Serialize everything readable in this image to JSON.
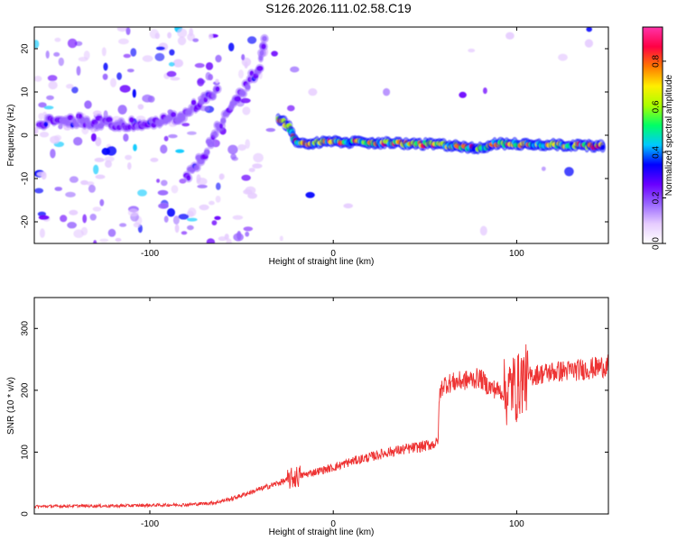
{
  "title": "S126.2026.111.02.58.C19",
  "colors": {
    "snr_line": "#ee3333",
    "axis": "#000000",
    "colormap": [
      "#ffffff",
      "#e6ccff",
      "#9966ff",
      "#6a00ff",
      "#0000ff",
      "#00c8ff",
      "#00ff66",
      "#aaff00",
      "#ffee00",
      "#ff7700",
      "#ff0044",
      "#ff33aa"
    ]
  },
  "chart_data": [
    {
      "type": "heatmap",
      "title": "",
      "xlabel": "Height of straight line (km)",
      "ylabel": "Frequency (Hz)",
      "xlim": [
        -163,
        150
      ],
      "ylim": [
        -25,
        25
      ],
      "xticks": [
        {
          "value": -100,
          "label": "-100"
        },
        {
          "value": 0,
          "label": "0"
        },
        {
          "value": 100,
          "label": "100"
        }
      ],
      "yticks": [
        {
          "value": -20,
          "label": "-20"
        },
        {
          "value": -10,
          "label": "-10"
        },
        {
          "value": 0,
          "label": "0"
        },
        {
          "value": 10,
          "label": "10"
        },
        {
          "value": 20,
          "label": "20"
        }
      ],
      "colorbar": {
        "label": "Normalized spectral amplitude",
        "range": [
          0,
          0.95
        ],
        "ticks": [
          {
            "value": 0,
            "label": "0.0"
          },
          {
            "value": 0.2,
            "label": "0.2"
          },
          {
            "value": 0.4,
            "label": "0.4"
          },
          {
            "value": 0.6,
            "label": "0.6"
          },
          {
            "value": 0.8,
            "label": "0.8"
          }
        ]
      },
      "ridges": [
        {
          "points": [
            [
              -160,
              3
            ],
            [
              -140,
              3.5
            ],
            [
              -120,
              2.5
            ],
            [
              -100,
              2.5
            ],
            [
              -85,
              4
            ],
            [
              -75,
              7
            ],
            [
              -62,
              11
            ]
          ],
          "intensity": 0.25
        },
        {
          "points": [
            [
              -80,
              -10
            ],
            [
              -70,
              -4
            ],
            [
              -60,
              4
            ],
            [
              -50,
              10
            ],
            [
              -40,
              16
            ],
            [
              -37,
              24
            ]
          ],
          "intensity": 0.25
        },
        {
          "points": [
            [
              -30,
              4
            ],
            [
              -24,
              2
            ],
            [
              -20,
              -2
            ],
            [
              0,
              -1.5
            ],
            [
              30,
              -1.8
            ],
            [
              60,
              -2.2
            ],
            [
              80,
              -3
            ],
            [
              88,
              -2
            ],
            [
              100,
              -2
            ],
            [
              120,
              -2.2
            ],
            [
              148,
              -2.5
            ]
          ],
          "intensity": 0.7
        }
      ]
    },
    {
      "type": "line",
      "title": "",
      "xlabel": "Height of straight line (km)",
      "ylabel": "SNR (10 * v/v)",
      "xlim": [
        -163,
        150
      ],
      "ylim": [
        0,
        350
      ],
      "xticks": [
        {
          "value": -100,
          "label": "-100"
        },
        {
          "value": 0,
          "label": "0"
        },
        {
          "value": 100,
          "label": "100"
        }
      ],
      "yticks": [
        {
          "value": 0,
          "label": "0"
        },
        {
          "value": 100,
          "label": "100"
        },
        {
          "value": 200,
          "label": "200"
        },
        {
          "value": 300,
          "label": "300"
        }
      ],
      "series": [
        {
          "x": [
            -163,
            -140,
            -120,
            -100,
            -80,
            -65,
            -55,
            -45,
            -35,
            -25,
            -20,
            -10,
            0,
            10,
            20,
            30,
            40,
            50,
            57,
            58,
            60,
            70,
            80,
            85,
            90,
            95,
            98,
            100,
            102,
            105,
            110,
            120,
            130,
            140,
            150
          ],
          "y": [
            12,
            13,
            13,
            14,
            15,
            18,
            25,
            35,
            45,
            55,
            60,
            68,
            75,
            85,
            92,
            100,
            105,
            110,
            115,
            195,
            210,
            215,
            220,
            205,
            200,
            195,
            210,
            200,
            215,
            220,
            225,
            230,
            232,
            235,
            240
          ]
        }
      ]
    }
  ]
}
